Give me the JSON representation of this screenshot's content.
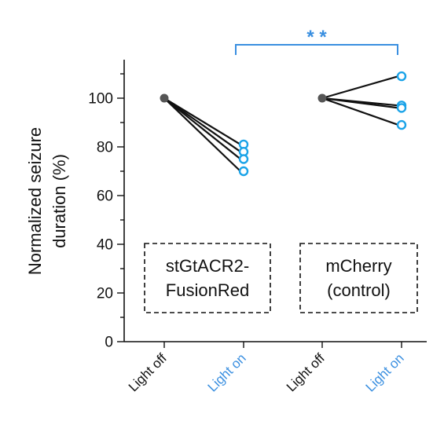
{
  "chart_data": {
    "type": "line",
    "ylabel_lines": [
      "Normalized seizure",
      "duration (%)"
    ],
    "ylim": [
      0,
      110
    ],
    "yticks": [
      0,
      20,
      40,
      60,
      80,
      100
    ],
    "categories": [
      "Light off",
      "Light on",
      "Light off",
      "Light on"
    ],
    "category_colors": [
      "#111111",
      "#3a8fe0",
      "#111111",
      "#3a8fe0"
    ],
    "groups": [
      {
        "label_lines": [
          "stGtACR2-",
          "FusionRed"
        ],
        "x_off": 0,
        "x_on": 1,
        "off_value": 100,
        "on_values": [
          81,
          78,
          75,
          70
        ]
      },
      {
        "label_lines": [
          "mCherry",
          "(control)"
        ],
        "x_off": 2,
        "x_on": 3,
        "off_value": 100,
        "on_values": [
          109,
          97,
          96,
          89
        ]
      }
    ],
    "significance": {
      "label": "* *",
      "from": 1,
      "to": 3
    },
    "colors": {
      "light_off": "#555555",
      "light_on": "#1aa3e8",
      "bracket": "#3a8fe0",
      "text": "#111111"
    },
    "grid": false
  }
}
